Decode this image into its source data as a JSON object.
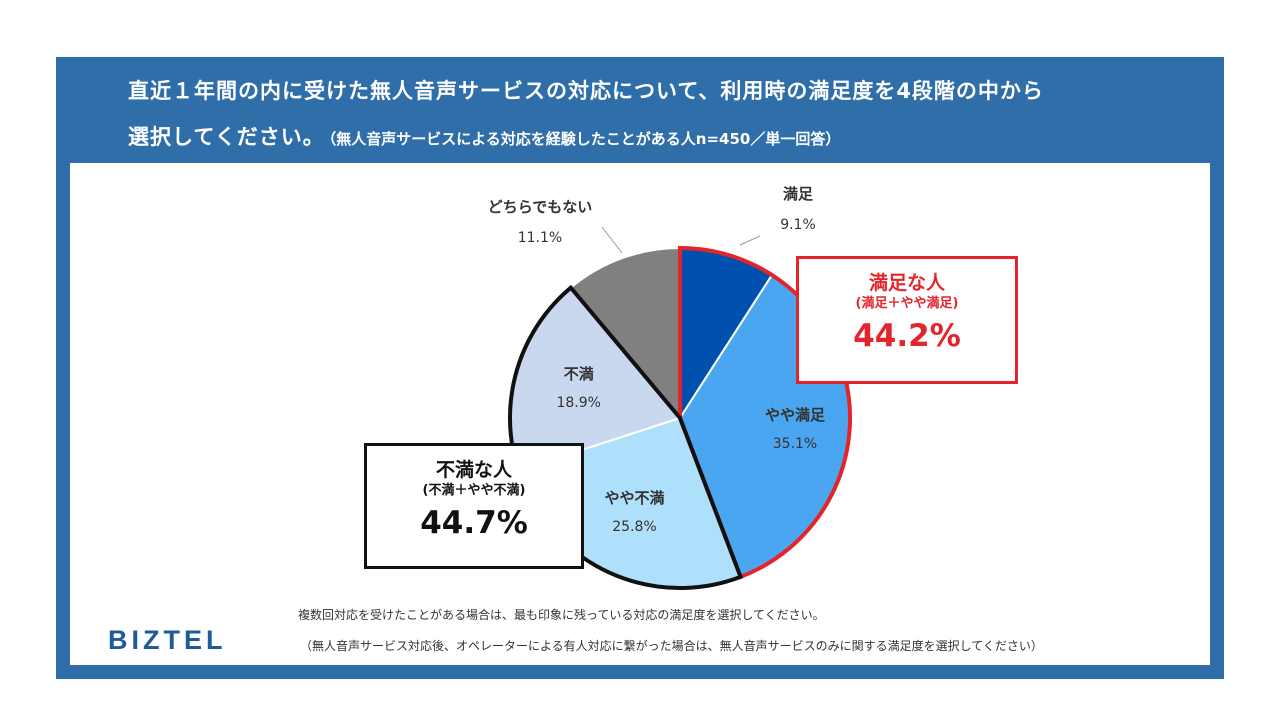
{
  "header": {
    "title_line1": "直近１年間の内に受けた無人音声サービスの対応について、利用時の満足度を4段階の中から",
    "title_line2": "選択してください。",
    "title_note": "（無人音声サービスによる対応を経験したことがある人n=450／単一回答）"
  },
  "chart_data": {
    "type": "pie",
    "title": "",
    "slices": [
      {
        "label": "満足",
        "value": 9.1,
        "value_label": "9.1%",
        "color": "#0050ae"
      },
      {
        "label": "やや満足",
        "value": 35.1,
        "value_label": "35.1%",
        "color": "#4aa6f0"
      },
      {
        "label": "やや不満",
        "value": 25.8,
        "value_label": "25.8%",
        "color": "#aee0fb"
      },
      {
        "label": "不満",
        "value": 18.9,
        "value_label": "18.9%",
        "color": "#c9d8ee"
      },
      {
        "label": "どちらでもない",
        "value": 11.1,
        "value_label": "11.1%",
        "color": "#808080"
      }
    ],
    "start": "12 o'clock",
    "direction": "clockwise",
    "groups": [
      {
        "head": "満足な人",
        "sub": "(満足＋やや満足)",
        "value": 44.2,
        "value_label": "44.2%",
        "color": "#e3242b",
        "members": [
          "満足",
          "やや満足"
        ]
      },
      {
        "head": "不満な人",
        "sub": "(不満＋やや不満)",
        "value": 44.7,
        "value_label": "44.7%",
        "color": "#111111",
        "members": [
          "やや不満",
          "不満"
        ]
      }
    ]
  },
  "footer": {
    "logo": "BIZTEL",
    "note1": "複数回対応を受けたことがある場合は、最も印象に残っている対応の満足度を選択してください。",
    "note2": "（無人音声サービス対応後、オペレーターによる有人対応に繋がった場合は、無人音声サービスのみに関する満足度を選択してください）"
  }
}
